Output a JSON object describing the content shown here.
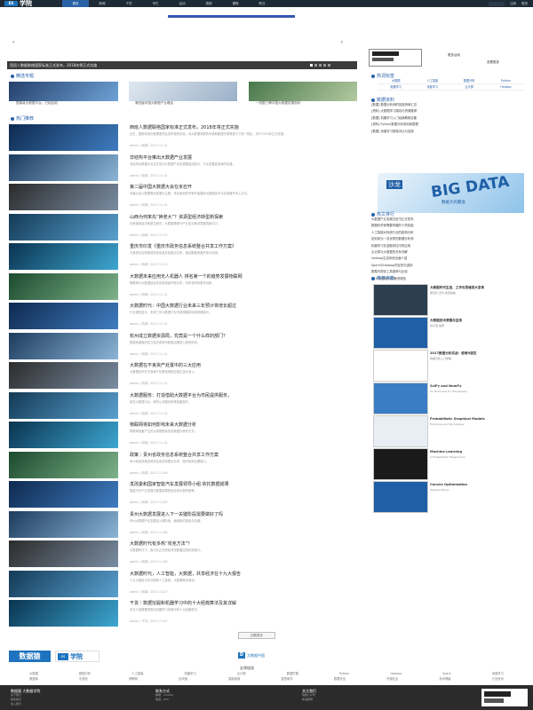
{
  "header": {
    "logo_mark": "ES",
    "logo_text": "学院",
    "nav": [
      "首页",
      "新闻",
      "干货",
      "专栏",
      "活动",
      "视频",
      "课程",
      "职业"
    ],
    "links": [
      "注册",
      "登录"
    ]
  },
  "banner": {
    "prev": "‹",
    "next": "›",
    "caption": "西班人数据联络国家标准正式发布，2018年将正式实施"
  },
  "ad_links": [
    "更多活动",
    "查看更多"
  ],
  "sections": {
    "recommend": "精选专题",
    "hot": "热门推荐",
    "tags": "热词标签",
    "data_resources": "数据资料",
    "hot_list": "热文排行",
    "books": "推荐书籍"
  },
  "recommend_captions": [
    "国家级大数据平台，已经启用",
    "第四届中国大数据产业峰会",
    "一张图了解中国大数据发展现状"
  ],
  "articles": [
    {
      "title": "西班人数据联络国家标准正式发布，2018年将正式实施",
      "desc": "近日，国家标准化管理委员会发布相关标准，对大数据领域的术语和数据分类等进行了统一规定，将于2018年正式实施。",
      "meta": "admin / 新闻 / 2017-11-15"
    },
    {
      "title": "非结构平台推出大数据产业发展",
      "desc": "非结构化数据平台正在成为大数据产业的重要组成部分，行业发展迎来新的机遇。",
      "meta": "admin / 新闻 / 2017-11-14"
    },
    {
      "title": "第二届中国大数据大会在京召开",
      "desc": "本届大会以数据驱动发展为主题，来自各地的专家学者围绕大数据技术与应用展开深入讨论。",
      "meta": "admin / 新闻 / 2017-11-14"
    },
    {
      "title": "山西为何率先“换老大”？资源型经济转型新探索",
      "desc": "在资源型经济转型过程中，大数据等新兴产业成为推动发展的新动力。",
      "meta": "admin / 新闻 / 2017-11-13"
    },
    {
      "title": "重庆市印发《重庆市政务信息系统整合共享工作方案》",
      "desc": "方案提出加快推进政务信息系统整合共享，推动数据资源开放与利用。",
      "meta": "admin / 新闻 / 2017-11-13"
    },
    {
      "title": "大数据未来应用无人机器人 排名第一个的趋势发展物联网",
      "desc": "物联网与大数据结合的应用场景不断丰富，未来将带来更多创新。",
      "meta": "admin / 新闻 / 2017-11-12"
    },
    {
      "title": "大数据时代：中国大数据行业未来三年预计将增长超过",
      "desc": "行业报告显示，未来三年大数据行业市场规模将持续快速增长。",
      "meta": "admin / 新闻 / 2017-11-12"
    },
    {
      "title": "杭州成立数据资源局，究竟是一个什么样的部门？",
      "desc": "数据资源局的成立标志着城市数据治理进入新的阶段。",
      "meta": "admin / 新闻 / 2017-11-11"
    },
    {
      "title": "大数据在不良资产处置中的三大应用",
      "desc": "大数据技术在不良资产处置领域的应用正逐步深入。",
      "meta": "admin / 新闻 / 2017-11-11"
    },
    {
      "title": "大数据服务：打造借助大数据平台为市民提供服务，",
      "desc": "依托大数据平台，城市公共服务效率显著提升。",
      "meta": "admin / 新闻 / 2017-11-10"
    },
    {
      "title": "物联网将如何影响未来大数据分析",
      "desc": "物联网设备产生的大量数据将改变数据分析的方式。",
      "meta": "admin / 新闻 / 2017-11-10"
    },
    {
      "title": "政策｜贵州省政务信息系统整合共享工作方案",
      "desc": "贵州省加快推进政务信息系统整合共享，提升政府治理能力。",
      "meta": "admin / 新闻 / 2017-11-09"
    },
    {
      "title": "发改委和国家智能汽车发展领导小组 依托数据成果",
      "desc": "智能汽车产业发展与数据成果的结合成为新的趋势。",
      "meta": "admin / 新闻 / 2017-11-09"
    },
    {
      "title": "贵州大数据发展进入下一关键阶段需要做好了吗",
      "desc": "贵州大数据产业发展进入新阶段，面临新的挑战与机遇。",
      "meta": "admin / 新闻 / 2017-11-08"
    },
    {
      "title": "大数据时代有多热“攻克方法”？",
      "desc": "大数据时代下，各行业正在积极寻找数据应用的突破口。",
      "meta": "admin / 新闻 / 2017-11-08"
    },
    {
      "title": "大数据时代，人工智能，大数据，共享经济在十九大报告",
      "desc": "十九大报告中多次提到人工智能、大数据等关键词。",
      "meta": "admin / 新闻 / 2017-11-07"
    },
    {
      "title": "干货｜数据挖掘和机器学习中的十大经典算法及其详解",
      "desc": "本文介绍数据挖掘与机器学习领域中的十大经典算法。",
      "meta": "admin / 干货 / 2017-11-07"
    }
  ],
  "more_button": "加载更多",
  "tags": [
    "大数据",
    "人工智能",
    "数据分析",
    "Python",
    "机器学习",
    "深度学习",
    "云计算",
    "Hadoop"
  ],
  "data_resources": [
    "[数据] 数据分析师的技能清单汇总",
    "[资料] 大数据学习路线与资源推荐",
    "[数据] 机器学习入门经典教程合集",
    "[资料] Python数据分析常用库整理",
    "[数据] 深度学习框架对比与选择"
  ],
  "bigdata_ad": {
    "badge": "沙龙",
    "main": "BIG DATA",
    "sub": "数据大的聚会"
  },
  "hot_list": [
    "大数据产业发展白皮书正式发布",
    "数据科学家需要掌握的十项技能",
    "人工智能对传统行业的影响分析",
    "如何成为一名优秀的数据分析师",
    "机器学习在金融风控中的应用",
    "云计算与大数据的关系详解",
    "Hadoop生态系统全面介绍",
    "Spark与Hadoop的区别与选择",
    "数据可视化工具推荐与比较",
    "2017大数据行业薪资报告"
  ],
  "books": [
    {
      "title": "大数据时代生活、工作与思维的大变革",
      "sub": "维克托·迈尔-舍恩伯格"
    },
    {
      "title": "大数据技术原理与应用",
      "sub": "林子雨 编著"
    },
    {
      "title": "2017数据分析实战：使用R语言",
      "sub": "数据分析入门教程"
    },
    {
      "title": "SciPy and NumPy",
      "sub": "An Overview for Developers"
    },
    {
      "title": "Probabilistic Graphical Models",
      "sub": "Principles and Techniques"
    },
    {
      "title": "Machine Learning",
      "sub": "A Probabilistic Perspective"
    },
    {
      "title": "Convex Optimization",
      "sub": "Stephen Boyd"
    }
  ],
  "footer": {
    "logo1": "数据猿",
    "logo2_mark": "ES",
    "logo2_text": "学院",
    "logo3_mark": "D",
    "logo3_text": "大数据中国",
    "friends_title": "友情链接",
    "friend_rows": [
      [
        "大数据",
        "数据分析",
        "人工智能",
        "机器学习",
        "云计算",
        "数据挖掘",
        "Python",
        "Hadoop",
        "Spark",
        "深度学习"
      ],
      [
        "数据库",
        "可视化",
        "物联网",
        "区块链",
        "智能制造",
        "智慧城市",
        "数据安全",
        "开源社区",
        "技术博客",
        "行业资讯"
      ]
    ],
    "cols": [
      {
        "h": "数据猿 大数据学院",
        "l": [
          "关于我们",
          "联系我们",
          "加入我们"
        ]
      },
      {
        "h": "联系方式",
        "l": [
          "邮箱：contact",
          "电话：010"
        ]
      },
      {
        "h": "关注我们",
        "l": [
          "微信公众号",
          "新浪微博"
        ]
      }
    ]
  },
  "colors": {
    "accent": "#2a62a8",
    "topbar": "#1f2a37",
    "footer": "#2b2b2b"
  }
}
